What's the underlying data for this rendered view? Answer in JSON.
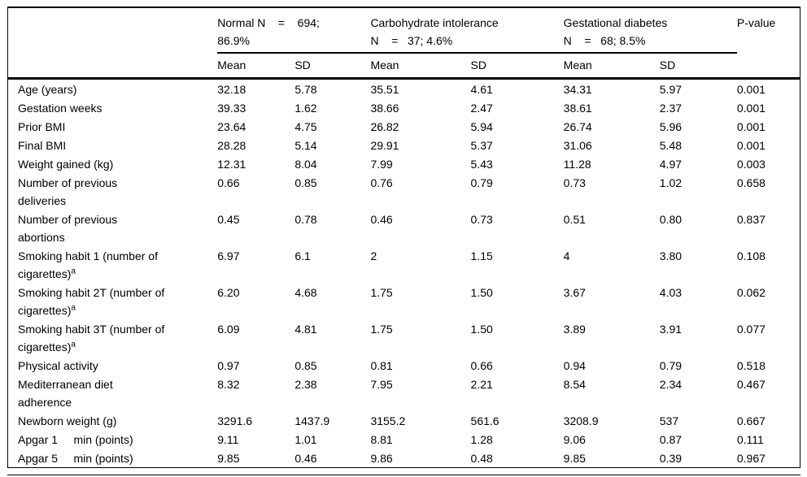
{
  "colors": {
    "text": "#000000",
    "background": "#ffffff",
    "rule": "#000000"
  },
  "table": {
    "col_groups": [
      {
        "label": "Normal N    =    694;\n86.9%"
      },
      {
        "label": "Carbohydrate intolerance\nN    =   37; 4.6%"
      },
      {
        "label": "Gestational diabetes\nN    =   68; 8.5%"
      }
    ],
    "p_value_header": "P-value",
    "sub_headers": [
      "Mean",
      "SD",
      "Mean",
      "SD",
      "Mean",
      "SD"
    ],
    "rows": [
      {
        "label": "Age (years)",
        "values": [
          "32.18",
          "5.78",
          "35.51",
          "4.61",
          "34.31",
          "5.97",
          "0.001"
        ]
      },
      {
        "label": "Gestation weeks",
        "values": [
          "39.33",
          "1.62",
          "38.66",
          "2.47",
          "38.61",
          "2.37",
          "0.001"
        ]
      },
      {
        "label": "Prior BMI",
        "values": [
          "23.64",
          "4.75",
          "26.82",
          "5.94",
          "26.74",
          "5.96",
          "0.001"
        ]
      },
      {
        "label": "Final BMI",
        "values": [
          "28.28",
          "5.14",
          "29.91",
          "5.37",
          "31.06",
          "5.48",
          "0.001"
        ]
      },
      {
        "label": "Weight gained (kg)",
        "values": [
          "12.31",
          "8.04",
          "7.99",
          "5.43",
          "11.28",
          "4.97",
          "0.003"
        ]
      },
      {
        "label": "Number of previous\ndeliveries",
        "values": [
          "0.66",
          "0.85",
          "0.76",
          "0.79",
          "0.73",
          "1.02",
          "0.658"
        ]
      },
      {
        "label": "Number of previous\nabortions",
        "values": [
          "0.45",
          "0.78",
          "0.46",
          "0.73",
          "0.51",
          "0.80",
          "0.837"
        ]
      },
      {
        "label": "Smoking habit 1 (number of\ncigarettes)",
        "label_sup": "a",
        "values": [
          "6.97",
          "6.1",
          "2",
          "1.15",
          "4",
          "3.80",
          "0.108"
        ]
      },
      {
        "label": "Smoking habit 2T (number of\ncigarettes)",
        "label_sup": "a",
        "values": [
          "6.20",
          "4.68",
          "1.75",
          "1.50",
          "3.67",
          "4.03",
          "0.062"
        ]
      },
      {
        "label": "Smoking habit 3T (number of\ncigarettes)",
        "label_sup": "a",
        "values": [
          "6.09",
          "4.81",
          "1.75",
          "1.50",
          "3.89",
          "3.91",
          "0.077"
        ]
      },
      {
        "label": "Physical activity",
        "values": [
          "0.97",
          "0.85",
          "0.81",
          "0.66",
          "0.94",
          "0.79",
          "0.518"
        ]
      },
      {
        "label": "Mediterranean diet\nadherence",
        "values": [
          "8.32",
          "2.38",
          "7.95",
          "2.21",
          "8.54",
          "2.34",
          "0.467"
        ]
      },
      {
        "label": "Newborn weight (g)",
        "values": [
          "3291.6",
          "1437.9",
          "3155.2",
          "561.6",
          "3208.9",
          "537",
          "0.667"
        ]
      },
      {
        "label": "Apgar 1     min (points)",
        "values": [
          "9.11",
          "1.01",
          "8.81",
          "1.28",
          "9.06",
          "0.87",
          "0.111"
        ]
      },
      {
        "label": "Apgar 5     min (points)",
        "values": [
          "9.85",
          "0.46",
          "9.86",
          "0.48",
          "9.85",
          "0.39",
          "0.967"
        ]
      }
    ]
  }
}
